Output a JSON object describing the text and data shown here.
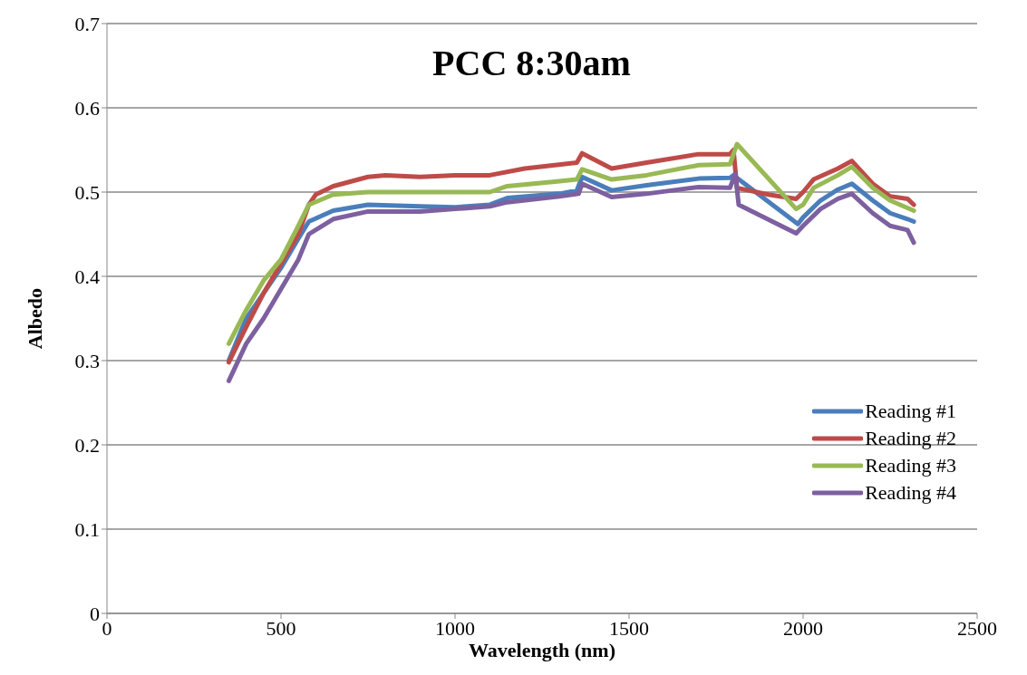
{
  "chart_data": {
    "type": "line",
    "title": "PCC 8:30am",
    "xlabel": "Wavelength (nm)",
    "ylabel": "Albedo",
    "xlim": [
      0,
      2500
    ],
    "xticks": [
      0,
      500,
      1000,
      1500,
      2000,
      2500
    ],
    "ylim": [
      0,
      0.7
    ],
    "yticks": [
      0,
      0.1,
      0.2,
      0.3,
      0.4,
      0.5,
      0.6,
      0.7
    ],
    "grid": "y",
    "legend": "bottom right",
    "marker": "none",
    "line_style": "solid",
    "series": [
      {
        "name": "Reading #1",
        "color": "#4a7ebb",
        "x": [
          350,
          400,
          450,
          500,
          550,
          580,
          650,
          750,
          900,
          1000,
          1100,
          1150,
          1300,
          1350,
          1365,
          1450,
          1550,
          1700,
          1790,
          1800,
          1985,
          2000,
          2050,
          2100,
          2140,
          2200,
          2250,
          2300,
          2318
        ],
        "values": [
          0.3,
          0.35,
          0.38,
          0.41,
          0.445,
          0.465,
          0.478,
          0.485,
          0.483,
          0.482,
          0.485,
          0.493,
          0.498,
          0.502,
          0.518,
          0.502,
          0.508,
          0.516,
          0.517,
          0.52,
          0.462,
          0.47,
          0.49,
          0.503,
          0.51,
          0.49,
          0.475,
          0.468,
          0.465
        ]
      },
      {
        "name": "Reading #2",
        "color": "#be4b48",
        "x": [
          350,
          400,
          450,
          500,
          550,
          580,
          600,
          650,
          750,
          800,
          900,
          1000,
          1100,
          1200,
          1350,
          1365,
          1450,
          1550,
          1700,
          1790,
          1800,
          1810,
          1900,
          1980,
          2000,
          2030,
          2100,
          2140,
          2200,
          2250,
          2300,
          2318
        ],
        "values": [
          0.298,
          0.34,
          0.38,
          0.415,
          0.45,
          0.485,
          0.497,
          0.507,
          0.518,
          0.52,
          0.518,
          0.52,
          0.52,
          0.528,
          0.535,
          0.546,
          0.528,
          0.535,
          0.545,
          0.545,
          0.55,
          0.505,
          0.497,
          0.492,
          0.5,
          0.515,
          0.528,
          0.537,
          0.51,
          0.495,
          0.492,
          0.485
        ]
      },
      {
        "name": "Reading #3",
        "color": "#98b954",
        "x": [
          350,
          400,
          450,
          500,
          550,
          580,
          650,
          750,
          900,
          1000,
          1100,
          1150,
          1300,
          1350,
          1365,
          1450,
          1550,
          1700,
          1790,
          1810,
          1980,
          2000,
          2030,
          2100,
          2140,
          2200,
          2250,
          2318
        ],
        "values": [
          0.32,
          0.36,
          0.395,
          0.42,
          0.46,
          0.485,
          0.497,
          0.5,
          0.5,
          0.5,
          0.5,
          0.507,
          0.513,
          0.515,
          0.527,
          0.515,
          0.52,
          0.532,
          0.533,
          0.557,
          0.48,
          0.485,
          0.505,
          0.52,
          0.53,
          0.505,
          0.49,
          0.478
        ]
      },
      {
        "name": "Reading #4",
        "color": "#7d60a0",
        "x": [
          350,
          400,
          450,
          500,
          550,
          580,
          650,
          750,
          900,
          1000,
          1100,
          1150,
          1300,
          1355,
          1365,
          1450,
          1550,
          1700,
          1790,
          1805,
          1815,
          1980,
          2000,
          2050,
          2100,
          2140,
          2200,
          2250,
          2300,
          2318
        ],
        "values": [
          0.276,
          0.32,
          0.35,
          0.385,
          0.42,
          0.45,
          0.468,
          0.477,
          0.477,
          0.48,
          0.483,
          0.488,
          0.495,
          0.498,
          0.51,
          0.494,
          0.498,
          0.506,
          0.505,
          0.522,
          0.485,
          0.451,
          0.46,
          0.48,
          0.492,
          0.498,
          0.475,
          0.46,
          0.455,
          0.44
        ]
      }
    ]
  }
}
